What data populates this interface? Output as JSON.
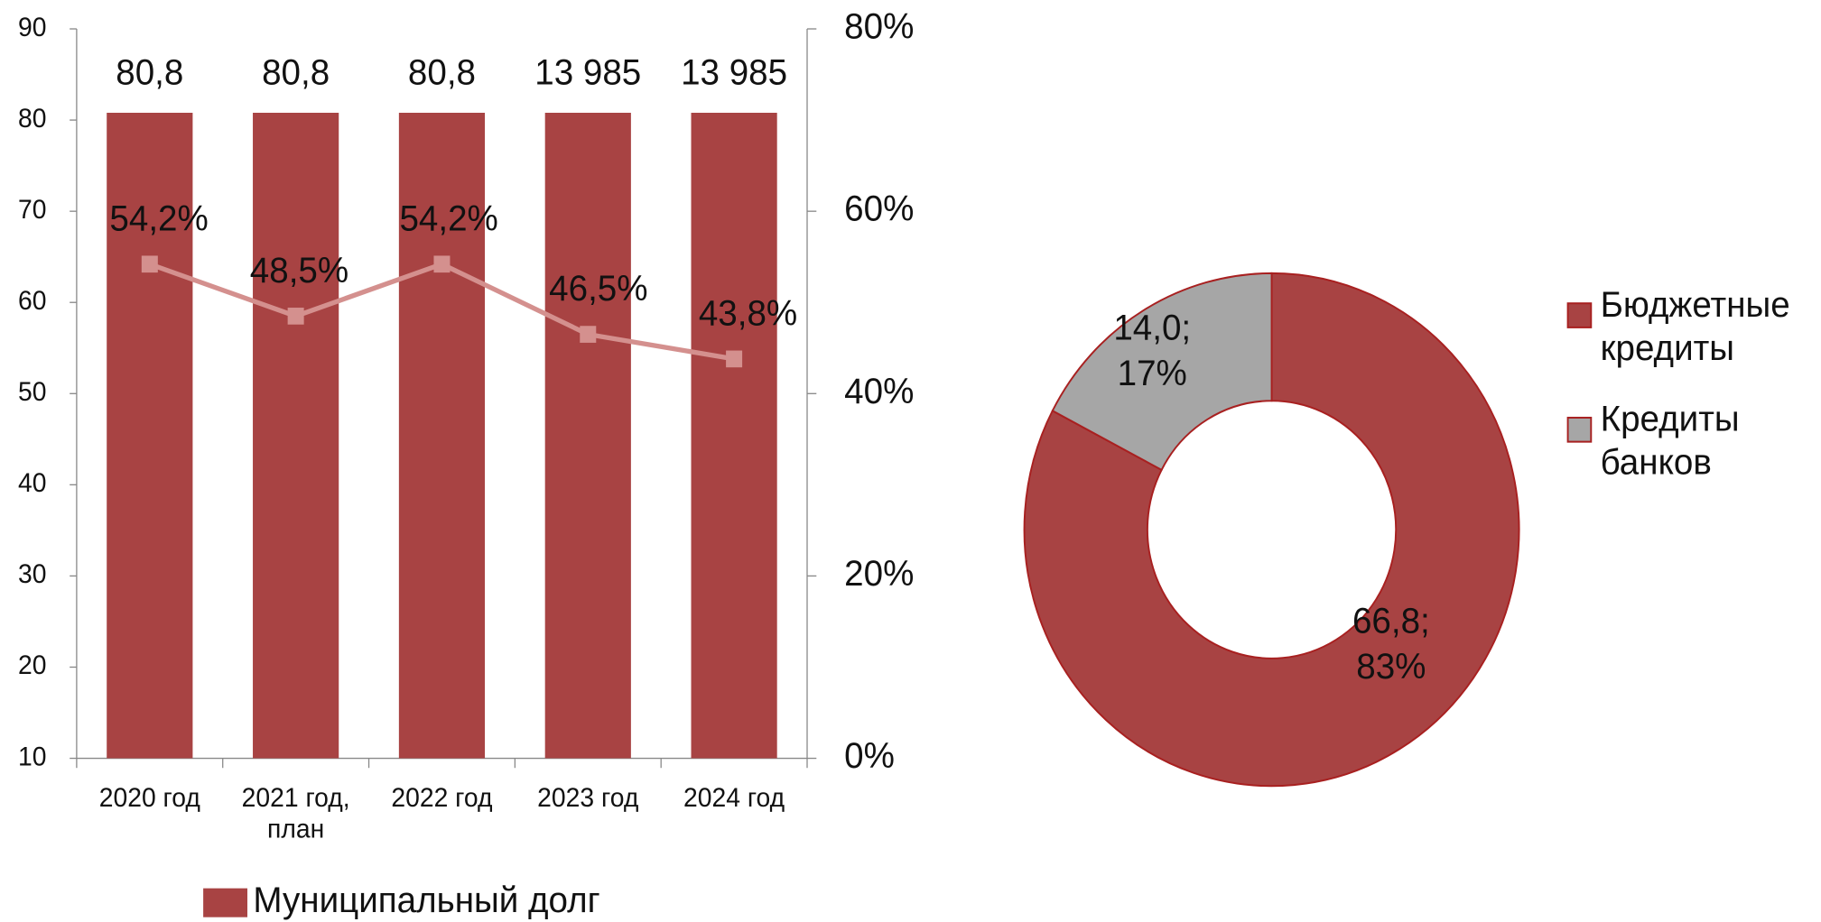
{
  "chart_data": [
    {
      "type": "bar",
      "categories": [
        "2020 год",
        "2021 год, план",
        "2022 год",
        "2023 год",
        "2024 год"
      ],
      "series": [
        {
          "name": "Муниципальный долг",
          "color": "#a84343",
          "values": [
            80.8,
            80.8,
            80.8,
            80.8,
            80.8
          ]
        },
        {
          "name": null,
          "type": "line",
          "axis": "y2",
          "color": "#d4908e",
          "values": [
            54.2,
            48.5,
            54.2,
            46.5,
            43.8
          ],
          "value_labels": [
            "54,2%",
            "48,5%",
            "54,2%",
            "46,5%",
            "43,8%"
          ]
        }
      ],
      "annotations": [
        "80,8",
        "80,8",
        "80,8",
        "13 985",
        "13 985"
      ],
      "ylim": [
        10,
        90
      ],
      "yticks": [
        10,
        20,
        30,
        40,
        50,
        60,
        70,
        80,
        90
      ],
      "y2lim": [
        0,
        80
      ],
      "y2ticks": [
        {
          "value": 0,
          "label": "0%"
        },
        {
          "value": 20,
          "label": "20%"
        },
        {
          "value": 40,
          "label": "40%"
        },
        {
          "value": 60,
          "label": "60%"
        },
        {
          "value": 80,
          "label": "80%"
        }
      ],
      "legend": "bottom"
    },
    {
      "type": "donut",
      "categories": [
        "Бюджетные кредиты",
        "Кредиты банков"
      ],
      "values": [
        66.8,
        14.0
      ],
      "value_labels": [
        [
          "66,8;",
          "83%"
        ],
        [
          "14,0;",
          "17%"
        ]
      ],
      "colors": [
        "#a84343",
        "#a6a6a6"
      ],
      "legend": "right"
    }
  ]
}
